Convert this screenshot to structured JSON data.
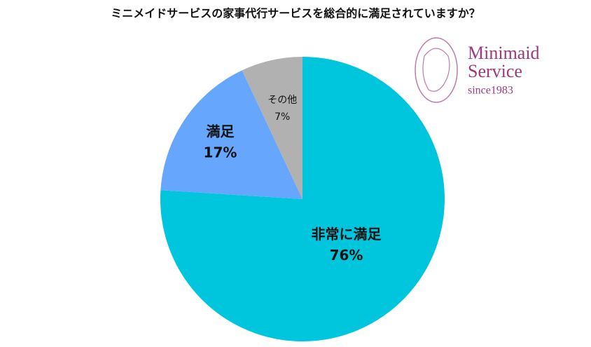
{
  "chart_data": {
    "type": "pie",
    "title": "ミニメイドサービスの家事代行サービスを総合的に満足されていますか？",
    "categories": [
      "非常に満足",
      "満足",
      "その他"
    ],
    "values": [
      76,
      17,
      7
    ],
    "value_labels": [
      "76%",
      "17%",
      "7%"
    ],
    "colors": [
      "#00c6dd",
      "#66a6fc",
      "#b1b1b1"
    ],
    "logo": {
      "line1": "Minimaid",
      "line2": "Service",
      "line3": "since1983"
    }
  }
}
